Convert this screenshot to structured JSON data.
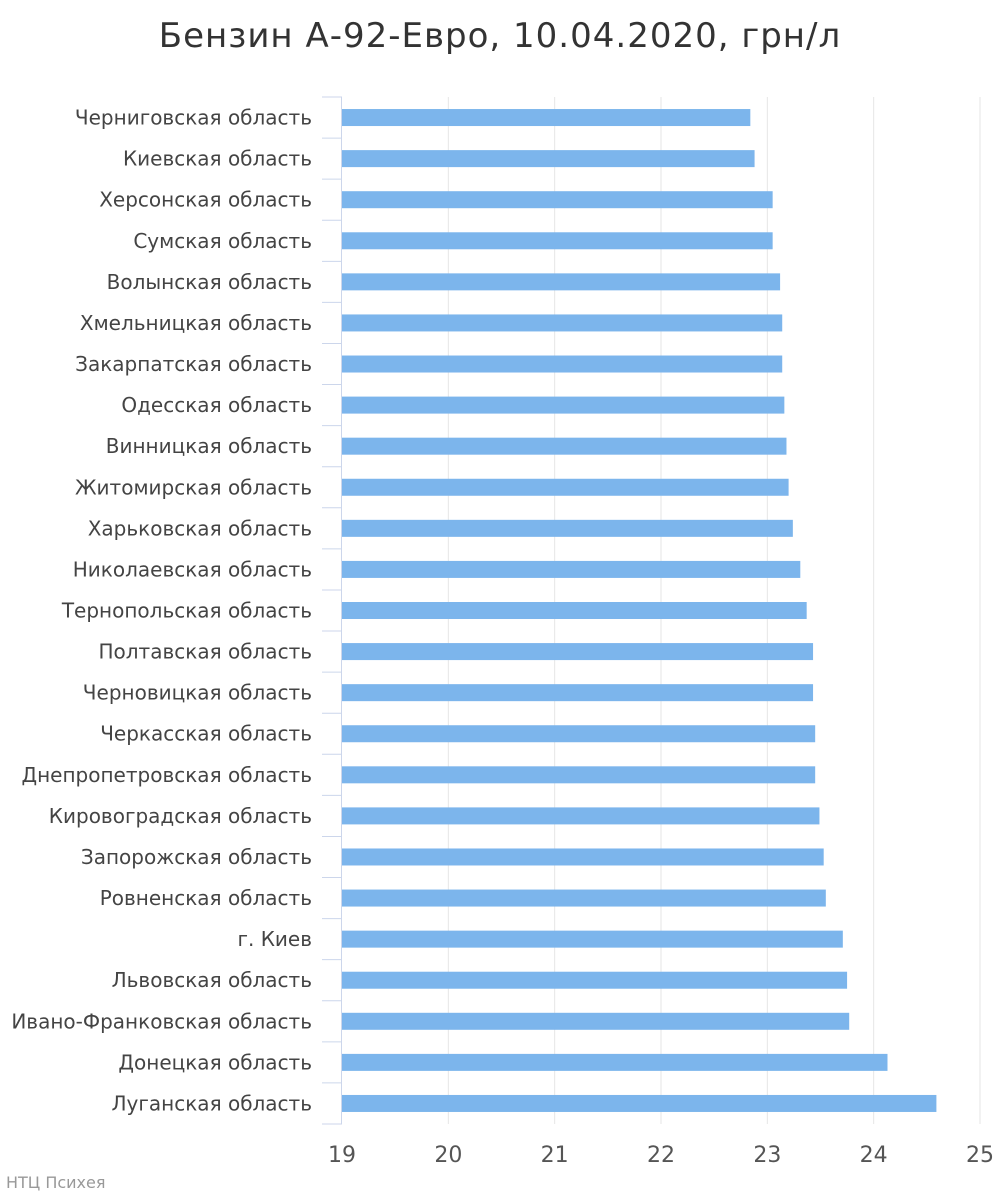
{
  "credit": "НТЦ Психея",
  "chart_data": {
    "type": "bar",
    "orientation": "horizontal",
    "title": "Бензин А-92-Евро, 10.04.2020, грн/л",
    "xlabel": "",
    "ylabel": "",
    "xlim": [
      19,
      25
    ],
    "ticks": [
      19,
      20,
      21,
      22,
      23,
      24,
      25
    ],
    "grid": true,
    "color": "#7cb5ec",
    "categories": [
      "Черниговская область",
      "Киевская область",
      "Херсонская область",
      "Сумская область",
      "Волынская область",
      "Хмельницкая область",
      "Закарпатская область",
      "Одесская область",
      "Винницкая область",
      "Житомирская область",
      "Харьковская область",
      "Николаевская область",
      "Тернопольская область",
      "Полтавская область",
      "Черновицкая область",
      "Черкасская область",
      "Днепропетровская область",
      "Кировоградская область",
      "Запорожская область",
      "Ровненская область",
      "г. Киев",
      "Львовская область",
      "Ивано-Франковская область",
      "Донецкая область",
      "Луганская область"
    ],
    "values": [
      22.84,
      22.88,
      23.05,
      23.05,
      23.12,
      23.14,
      23.14,
      23.16,
      23.18,
      23.2,
      23.24,
      23.31,
      23.37,
      23.43,
      23.43,
      23.45,
      23.45,
      23.49,
      23.53,
      23.55,
      23.71,
      23.75,
      23.77,
      24.13,
      24.59
    ]
  }
}
